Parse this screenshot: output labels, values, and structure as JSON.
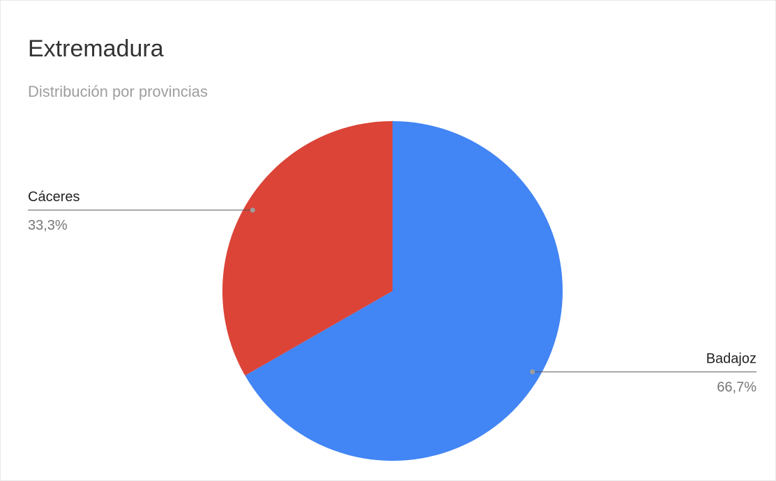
{
  "chart_data": {
    "type": "pie",
    "title": "Extremadura",
    "subtitle": "Distribución por provincias",
    "categories": [
      "Badajoz",
      "Cáceres"
    ],
    "values": [
      66.7,
      33.3
    ],
    "value_labels": [
      "66,7%",
      "33,3%"
    ],
    "colors": [
      "#4285f4",
      "#db4437"
    ]
  }
}
